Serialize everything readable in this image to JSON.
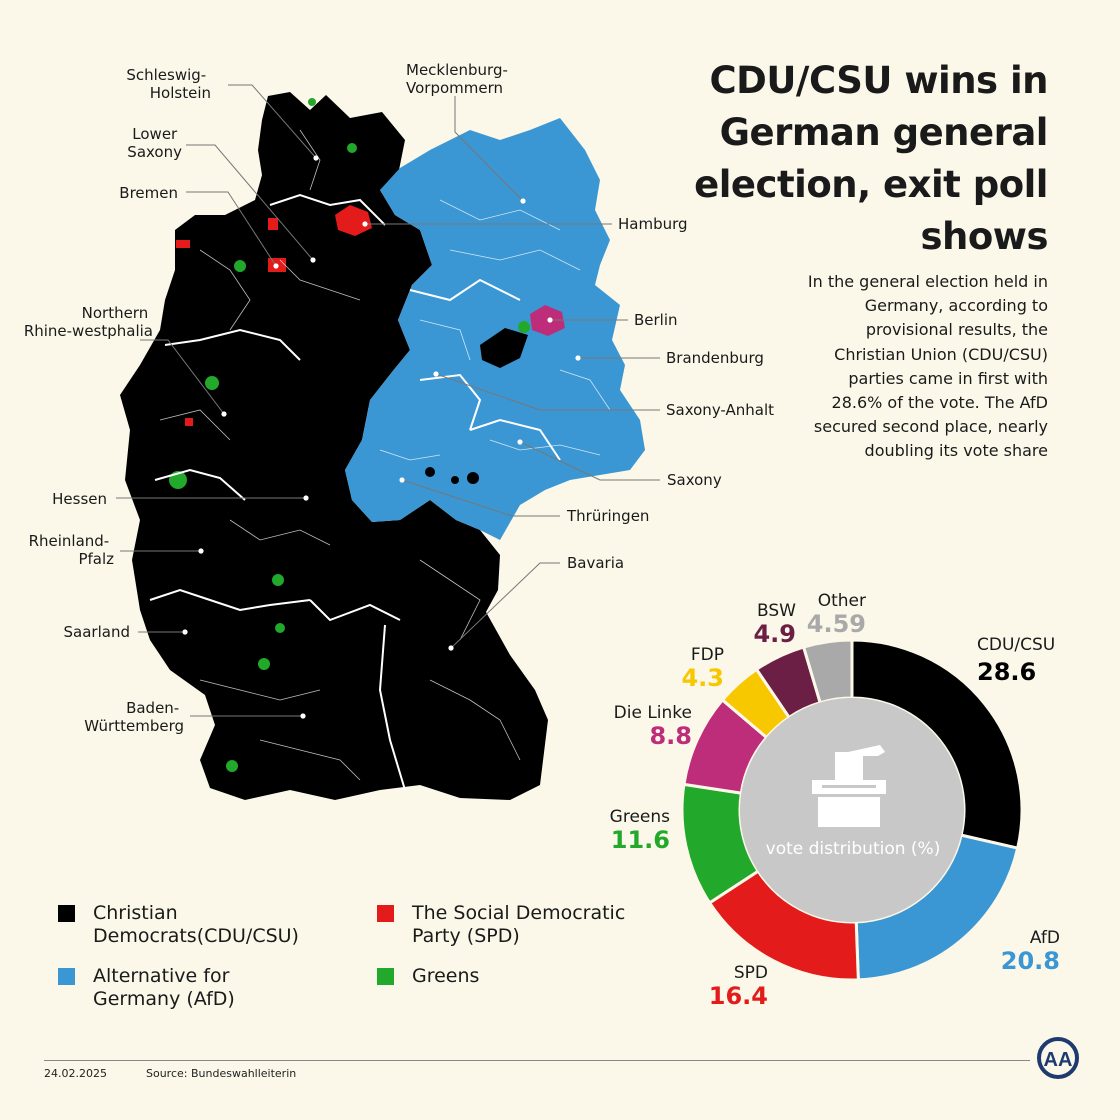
{
  "headline": "CDU/CSU wins in German general election, exit poll shows",
  "intro": "In the general election held in Germany, according to provisional results, the Christian Union (CDU/CSU) parties came in first with 28.6% of the vote. The AfD secured second place, nearly doubling its vote share",
  "regions": {
    "schleswig_holstein": "Schleswig-\nHolstein",
    "mecklenburg": "Mecklenburg-\nVorpommern",
    "lower_saxony": "Lower\nSaxony",
    "bremen": "Bremen",
    "hamburg": "Hamburg",
    "berlin": "Berlin",
    "brandenburg": "Brandenburg",
    "nrw": "Northern\nRhine-westphalia",
    "saxony_anhalt": "Saxony-Anhalt",
    "saxony": "Saxony",
    "hessen": "Hessen",
    "thuringia": "Thrüringen",
    "rheinland": "Rheinland-\nPfalz",
    "bavaria": "Bavaria",
    "saarland": "Saarland",
    "baden": "Baden-\nWürttemberg"
  },
  "colors": {
    "cdu": "#000000",
    "afd": "#3b97d3",
    "spd": "#e31b1b",
    "greens": "#22a82a",
    "linke": "#bd2d7a",
    "fdp": "#f7c700",
    "bsw": "#6b1f45",
    "other": "#a9a9a9",
    "background": "#fbf8ea",
    "center": "#c8c8c8"
  },
  "legend": [
    {
      "label": "Christian\nDemocrats(CDU/CSU)",
      "color": "#000000"
    },
    {
      "label": "Alternative for\nGermany (AfD)",
      "color": "#3b97d3"
    },
    {
      "label": "The Social Democratic\nParty (SPD)",
      "color": "#e31b1b"
    },
    {
      "label": "Greens",
      "color": "#22a82a"
    }
  ],
  "chart_data": {
    "type": "pie",
    "subtype": "donut",
    "title": "vote distribution (%)",
    "categories": [
      "CDU/CSU",
      "AfD",
      "SPD",
      "Greens",
      "Die Linke",
      "FDP",
      "BSW",
      "Other"
    ],
    "values": [
      28.6,
      20.8,
      16.4,
      11.6,
      8.8,
      4.3,
      4.9,
      4.59
    ],
    "value_labels": [
      "28.6",
      "20.8",
      "16.4",
      "11.6",
      "8.8",
      "4.3",
      "4.9",
      "4.59"
    ],
    "colors": [
      "#000000",
      "#3b97d3",
      "#e31b1b",
      "#22a82a",
      "#bd2d7a",
      "#f7c700",
      "#6b1f45",
      "#a9a9a9"
    ]
  },
  "footer": {
    "date": "24.02.2025",
    "source": "Source: Bundeswahlleiterin",
    "logo": "AA"
  }
}
